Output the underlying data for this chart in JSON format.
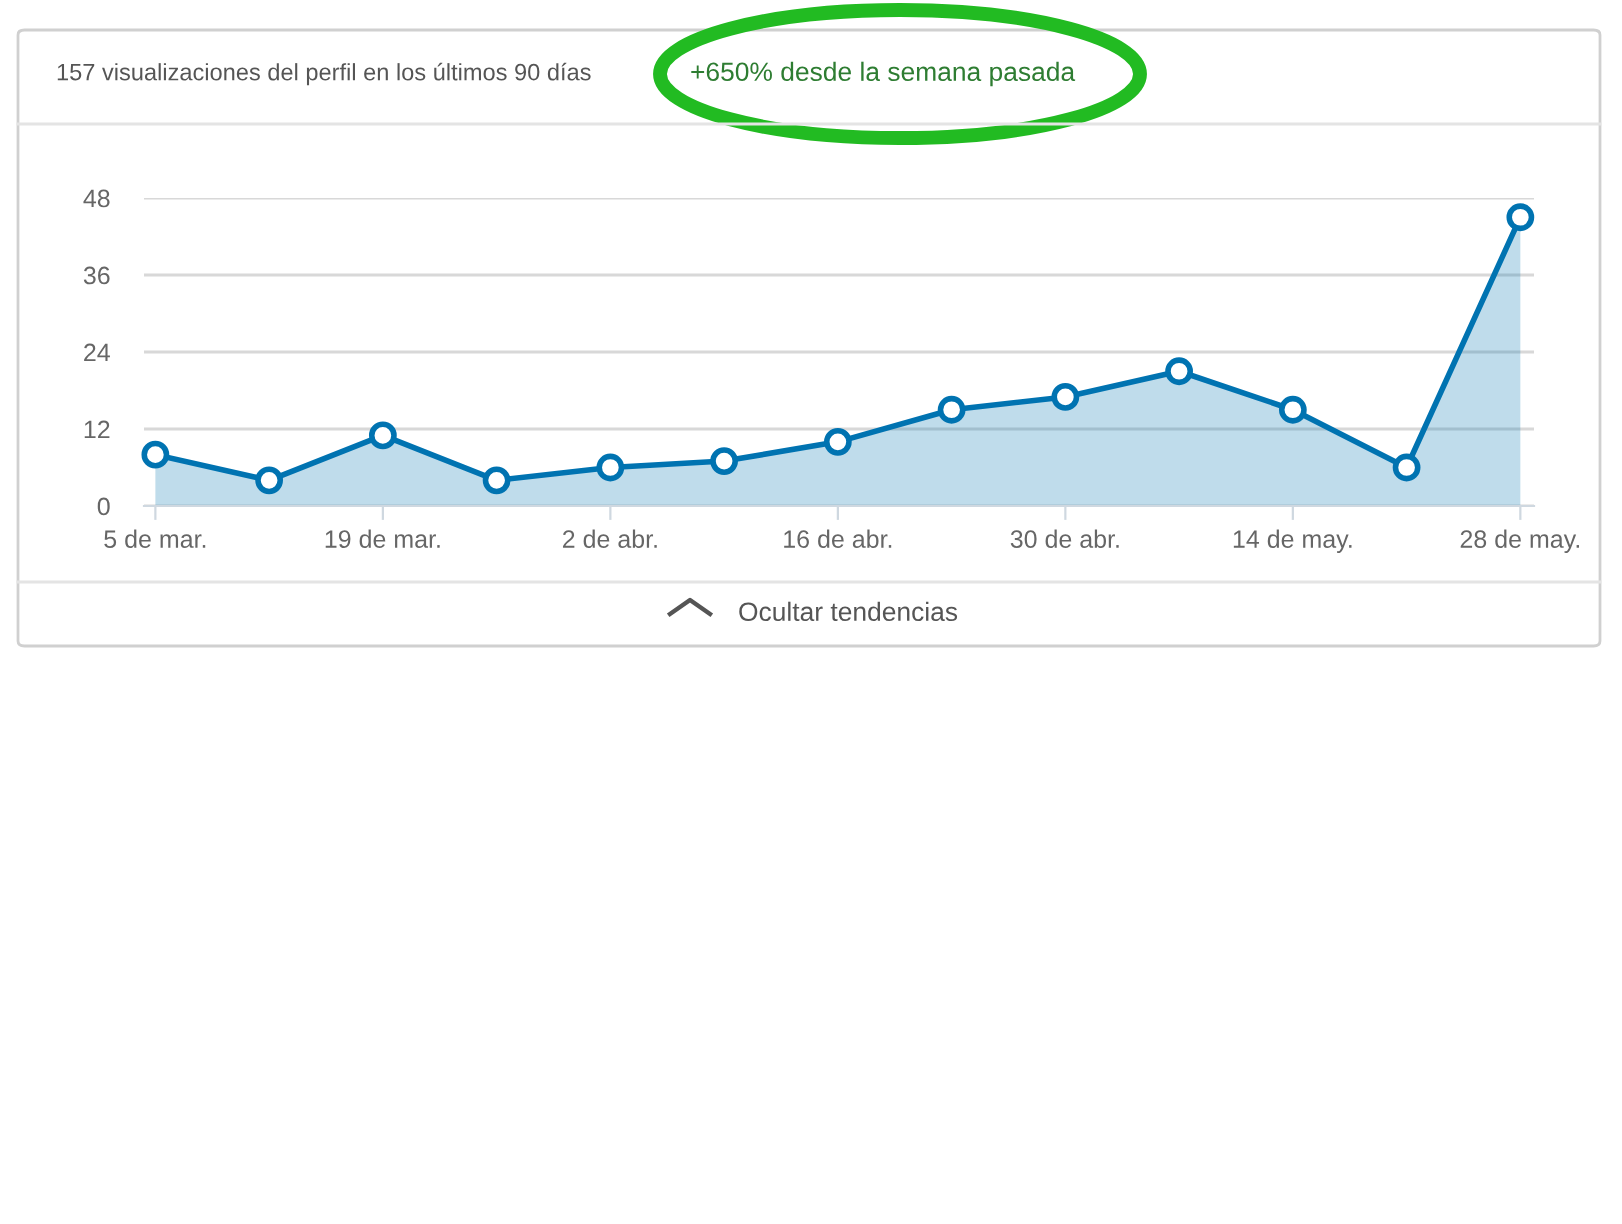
{
  "chart_data": {
    "type": "area",
    "title": "157 visualizaciones del perfil en los últimos 90 días",
    "subtitle": "+650% desde la semana pasada",
    "categories": [
      "5 de mar.",
      null,
      "19 de mar.",
      null,
      "2 de abr.",
      null,
      "16 de abr.",
      null,
      "30 de abr.",
      null,
      "14 de may.",
      null,
      "28 de may."
    ],
    "series": [
      {
        "color": "#0073b1",
        "values": [
          8,
          4,
          11,
          4,
          6,
          7,
          10,
          15,
          17,
          21,
          15,
          6,
          45
        ]
      }
    ],
    "ylim": [
      0,
      48
    ],
    "yticks": [
      0,
      12,
      24,
      36,
      48
    ],
    "grid": "y",
    "marker": "circle",
    "legend": false,
    "annotations": [
      "Ocultar tendencias"
    ]
  }
}
